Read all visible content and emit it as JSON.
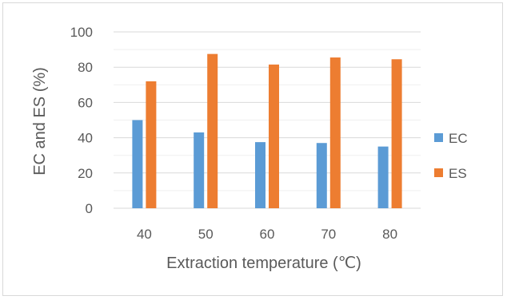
{
  "chart_data": {
    "type": "bar",
    "title": "",
    "xlabel": "Extraction temperature (℃)",
    "ylabel": "EC and ES (%)",
    "categories": [
      "40",
      "50",
      "60",
      "70",
      "80"
    ],
    "series": [
      {
        "name": "EC",
        "values": [
          50,
          43,
          37.5,
          37,
          35
        ],
        "color": "#5b9bd5"
      },
      {
        "name": "ES",
        "values": [
          72,
          87.5,
          81.5,
          85.5,
          84.5
        ],
        "color": "#ed7d31"
      }
    ],
    "ylim": [
      0,
      100
    ],
    "yticks": [
      0,
      20,
      40,
      60,
      80,
      100
    ],
    "grid": "major and minor horizontal gridlines",
    "legend": "right"
  }
}
